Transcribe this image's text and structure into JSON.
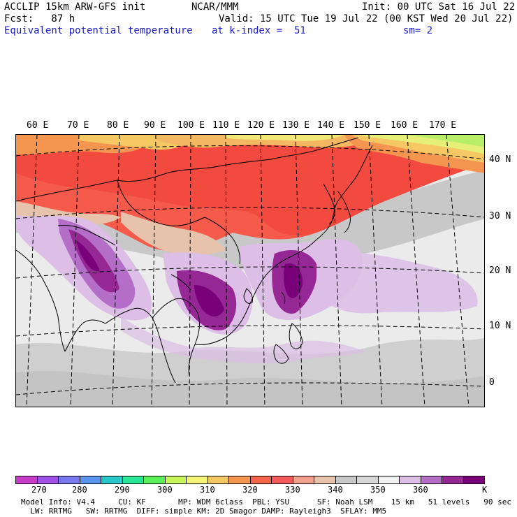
{
  "header": {
    "model": "ACCLIP 15km ARW-GFS init",
    "org": "NCAR/MMM",
    "init": "Init: 00 UTC Sat 16 Jul 22",
    "forecast": "Fcst:   87 h",
    "valid": "Valid: 15 UTC Tue 19 Jul 22 (00 KST Wed 20 Jul 22)",
    "field": "Equivalent potential temperature",
    "level": "at k-index =  51",
    "smoothing": "sm= 2"
  },
  "map": {
    "longitude_labels": [
      "60 E",
      "70 E",
      "80 E",
      "90 E",
      "100 E",
      "110 E",
      "120 E",
      "130 E",
      "140 E",
      "150 E",
      "160 E",
      "170 E"
    ],
    "latitude_labels": [
      "40 N",
      "30 N",
      "20 N",
      "10 N",
      "0"
    ]
  },
  "colorbar": {
    "unit": "K",
    "labels": [
      "270",
      "280",
      "290",
      "300",
      "310",
      "320",
      "330",
      "340",
      "350",
      "360"
    ],
    "colors": [
      "#c83cc8",
      "#a050e6",
      "#7878f0",
      "#5a96f0",
      "#28c8c8",
      "#28e696",
      "#5af05a",
      "#c8f55a",
      "#f5f578",
      "#f5c864",
      "#f59650",
      "#f56446",
      "#f55a5a",
      "#f0a08c",
      "#e6c3aa",
      "#c8c8c8",
      "#d7d7d7",
      "#f2f2f2",
      "#dcbee6",
      "#b46ec8",
      "#962896",
      "#780078"
    ]
  },
  "footer": {
    "line1": "Model Info: V4.4     CU: KF       MP: WDM 6class  PBL: YSU      SF: Noah LSM    15 km   51 levels   90 sec",
    "line2": "  LW: RRTMG   SW: RRTMG  DIFF: simple KM: 2D Smagor DAMP: Rayleigh3  SFLAY: MM5"
  }
}
